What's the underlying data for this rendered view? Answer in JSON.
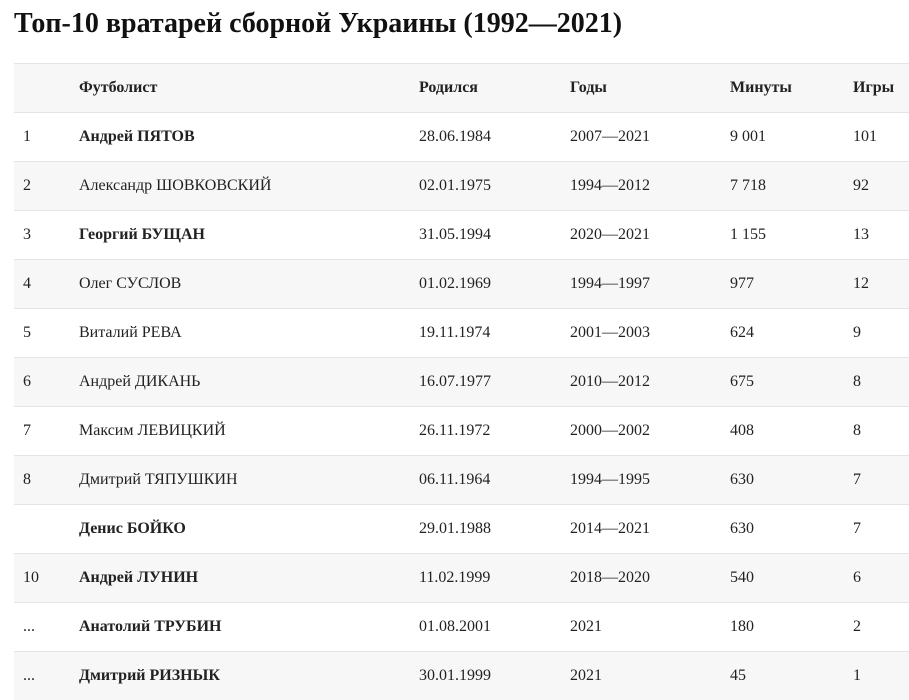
{
  "title": "Топ-10 вратарей сборной Украины (1992—2021)",
  "table": {
    "headers": {
      "num": "",
      "player": "Футболист",
      "born": "Родился",
      "years": "Годы",
      "minutes": "Минуты",
      "games": "Игры"
    },
    "rows": [
      {
        "num": "1",
        "player": "Андрей ПЯТОВ",
        "bold": true,
        "born": "28.06.1984",
        "years": "2007—2021",
        "minutes": "9 001",
        "games": "101"
      },
      {
        "num": "2",
        "player": "Александр ШОВКОВСКИЙ",
        "bold": false,
        "born": "02.01.1975",
        "years": "1994—2012",
        "minutes": "7 718",
        "games": "92"
      },
      {
        "num": "3",
        "player": "Георгий БУЩАН",
        "bold": true,
        "born": "31.05.1994",
        "years": "2020—2021",
        "minutes": "1 155",
        "games": "13"
      },
      {
        "num": "4",
        "player": "Олег СУСЛОВ",
        "bold": false,
        "born": "01.02.1969",
        "years": "1994—1997",
        "minutes": "977",
        "games": "12"
      },
      {
        "num": "5",
        "player": "Виталий РЕВА",
        "bold": false,
        "born": "19.11.1974",
        "years": "2001—2003",
        "minutes": "624",
        "games": "9"
      },
      {
        "num": "6",
        "player": "Андрей ДИКАНЬ",
        "bold": false,
        "born": "16.07.1977",
        "years": "2010—2012",
        "minutes": "675",
        "games": "8"
      },
      {
        "num": "7",
        "player": "Максим ЛЕВИЦКИЙ",
        "bold": false,
        "born": "26.11.1972",
        "years": "2000—2002",
        "minutes": "408",
        "games": "8"
      },
      {
        "num": "8",
        "player": "Дмитрий ТЯПУШКИН",
        "bold": false,
        "born": "06.11.1964",
        "years": "1994—1995",
        "minutes": "630",
        "games": "7"
      },
      {
        "num": "",
        "player": "Денис БОЙКО",
        "bold": true,
        "born": "29.01.1988",
        "years": "2014—2021",
        "minutes": "630",
        "games": "7"
      },
      {
        "num": "10",
        "player": "Андрей ЛУНИН",
        "bold": true,
        "born": "11.02.1999",
        "years": "2018—2020",
        "minutes": "540",
        "games": "6"
      },
      {
        "num": "...",
        "player": "Анатолий ТРУБИН",
        "bold": true,
        "born": "01.08.2001",
        "years": "2021",
        "minutes": "180",
        "games": "2"
      },
      {
        "num": "...",
        "player": "Дмитрий РИЗНЫК",
        "bold": true,
        "born": "30.01.1999",
        "years": "2021",
        "minutes": "45",
        "games": "1"
      }
    ]
  }
}
